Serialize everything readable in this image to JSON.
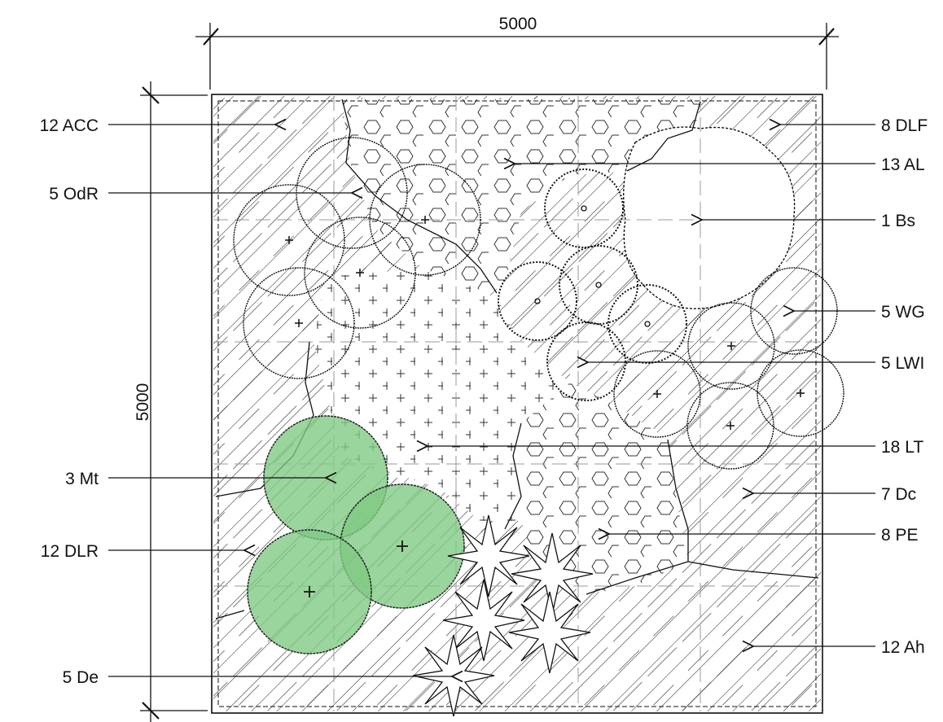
{
  "dimensions": {
    "width_label": "5000",
    "height_label": "5000"
  },
  "labels_left": [
    {
      "id": "acc",
      "text": "12 ACC"
    },
    {
      "id": "odr",
      "text": "5 OdR"
    },
    {
      "id": "mt",
      "text": "3 Mt"
    },
    {
      "id": "dlr",
      "text": "12 DLR"
    },
    {
      "id": "de",
      "text": "5 De"
    }
  ],
  "labels_right": [
    {
      "id": "dlf",
      "text": "8 DLF"
    },
    {
      "id": "al",
      "text": "13 AL"
    },
    {
      "id": "bs",
      "text": "1 Bs"
    },
    {
      "id": "wg",
      "text": "5 WG"
    },
    {
      "id": "lw",
      "text": "5 LWI"
    },
    {
      "id": "lt",
      "text": "18 LT"
    },
    {
      "id": "dc",
      "text": "7 Dc"
    },
    {
      "id": "pe",
      "text": "8 PE"
    },
    {
      "id": "ah",
      "text": "12 Ah"
    }
  ],
  "colors": {
    "highlight_fill": "#7fc983",
    "line": "#111111"
  }
}
